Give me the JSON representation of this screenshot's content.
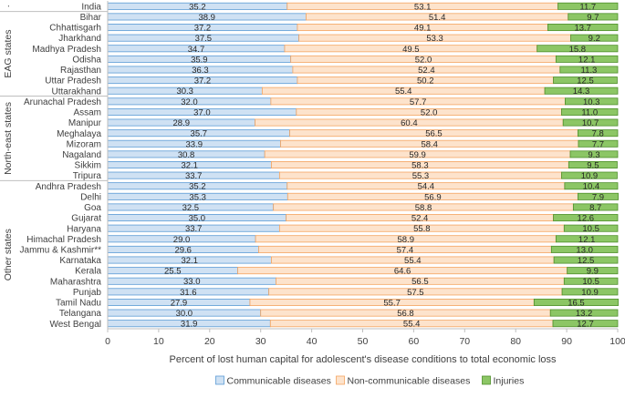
{
  "chart_data": {
    "type": "bar",
    "orientation": "horizontal",
    "stacked": true,
    "xlabel": "Percent of lost human capital for adolescent's disease conditions to total economic loss",
    "ylabel": "",
    "xlim": [
      0,
      100
    ],
    "xticks": [
      "0",
      "10",
      "20",
      "30",
      "40",
      "50",
      "60",
      "70",
      "80",
      "90",
      "100"
    ],
    "legend_position": "bottom",
    "categories": [
      "India",
      "Bihar",
      "Chhattisgarh",
      "Jharkhand",
      "Madhya Pradesh",
      "Odisha",
      "Rajasthan",
      "Uttar Pradesh",
      "Uttarakhand",
      "Arunachal Pradesh",
      "Assam",
      "Manipur",
      "Meghalaya",
      "Mizoram",
      "Nagaland",
      "Sikkim",
      "Tripura",
      "Andhra Pradesh",
      "Delhi",
      "Goa",
      "Gujarat",
      "Haryana",
      "Himachal Pradesh",
      "Jammu & Kashmir**",
      "Karnataka",
      "Kerala",
      "Maharashtra",
      "Punjab",
      "Tamil Nadu",
      "Telangana",
      "West Bengal"
    ],
    "groups": [
      {
        "label": "·",
        "start": 0,
        "end": 0
      },
      {
        "label": "EAG states",
        "start": 1,
        "end": 8
      },
      {
        "label": "North-east states",
        "start": 9,
        "end": 16
      },
      {
        "label": "Other states",
        "start": 17,
        "end": 30
      }
    ],
    "series": [
      {
        "name": "Communicable diseases",
        "color": "#cfe1f3",
        "edge": "#5b9bd5",
        "values": [
          35.2,
          38.9,
          37.2,
          37.5,
          34.7,
          35.9,
          36.3,
          37.2,
          30.3,
          32.0,
          37.0,
          28.9,
          35.7,
          33.9,
          30.8,
          32.1,
          33.7,
          35.2,
          35.3,
          32.5,
          35.0,
          33.7,
          29.0,
          29.6,
          32.1,
          25.5,
          33.0,
          31.6,
          27.9,
          30.0,
          31.9
        ]
      },
      {
        "name": "Non-communicable diseases",
        "color": "#fde3cc",
        "edge": "#f4a460",
        "values": [
          53.1,
          51.4,
          49.1,
          53.3,
          49.5,
          52.0,
          52.4,
          50.2,
          55.4,
          57.7,
          52.0,
          60.4,
          56.5,
          58.4,
          59.9,
          58.3,
          55.3,
          54.4,
          56.9,
          58.8,
          52.4,
          55.8,
          58.9,
          57.4,
          55.4,
          64.6,
          56.5,
          57.5,
          55.7,
          56.8,
          55.4
        ]
      },
      {
        "name": "Injuries",
        "color": "#8cc665",
        "edge": "#4e8f2a",
        "values": [
          11.7,
          9.7,
          13.7,
          9.2,
          15.8,
          12.1,
          11.3,
          12.5,
          14.3,
          10.3,
          11.0,
          10.7,
          7.8,
          7.7,
          9.3,
          9.5,
          10.9,
          10.4,
          7.9,
          8.7,
          12.6,
          10.5,
          12.1,
          13.0,
          12.5,
          9.9,
          10.5,
          10.9,
          16.5,
          13.2,
          12.7
        ]
      }
    ]
  }
}
